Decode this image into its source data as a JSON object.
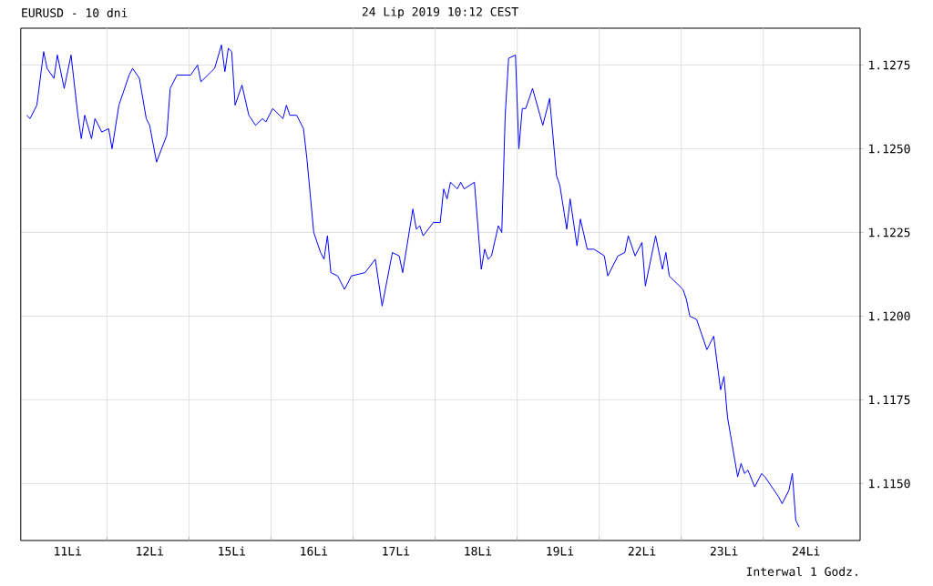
{
  "chart_data": {
    "type": "line",
    "title": "EURUSD - 10 dni",
    "subtitle": "24 Lip 2019 10:12 CEST",
    "annotations": [
      "Interwal 1 Godz."
    ],
    "categories": [
      null,
      null,
      null,
      null,
      null,
      null,
      null,
      null,
      null,
      null,
      null,
      null,
      "11Li",
      null,
      null,
      null,
      null,
      null,
      null,
      null,
      null,
      null,
      null,
      null,
      null,
      null,
      null,
      null,
      null,
      null,
      null,
      null,
      null,
      null,
      null,
      null,
      "12Li",
      null,
      null,
      null,
      null,
      null,
      null,
      null,
      null,
      null,
      null,
      null,
      null,
      null,
      null,
      null,
      null,
      null,
      null,
      null,
      null,
      null,
      null,
      null,
      "15Li",
      null,
      null,
      null,
      null,
      null,
      null,
      null,
      null,
      null,
      null,
      null,
      null,
      null,
      null,
      null,
      null,
      null,
      null,
      null,
      null,
      null,
      null,
      null,
      "16Li",
      null,
      null,
      null,
      null,
      null,
      null,
      null,
      null,
      null,
      null,
      null,
      null,
      null,
      null,
      null,
      null,
      null,
      null,
      null,
      null,
      null,
      null,
      null,
      "17Li",
      null,
      null,
      null,
      null,
      null,
      null,
      null,
      null,
      null,
      null,
      null,
      null,
      null,
      null,
      null,
      null,
      null,
      null,
      null,
      null,
      null,
      null,
      null,
      "18Li",
      null,
      null,
      null,
      null,
      null,
      null,
      null,
      null,
      null,
      null,
      null,
      null,
      null,
      null,
      null,
      null,
      null,
      null,
      null,
      null,
      null,
      null,
      null,
      "19Li",
      null,
      null,
      null,
      null,
      null,
      null,
      null,
      null,
      null,
      null,
      null,
      null,
      null,
      null,
      null,
      null,
      null,
      null,
      null,
      null,
      null,
      null,
      null,
      "22Li",
      null,
      null,
      null,
      null,
      null,
      null,
      null,
      null,
      null,
      null,
      null,
      null,
      null,
      null,
      null,
      null,
      null,
      null,
      null,
      null,
      null,
      null,
      null,
      "23Li",
      null,
      null,
      null,
      null,
      null,
      null,
      null,
      null,
      null,
      null,
      null,
      null,
      null,
      null,
      null,
      null,
      null,
      null,
      null,
      null,
      null,
      null,
      null,
      "24Li",
      null,
      null,
      null,
      null,
      null,
      null,
      null,
      null,
      null,
      null,
      null
    ],
    "ylim": [
      1.1133,
      1.1286
    ],
    "yticks": [
      {
        "value": 1.115,
        "label": "1.1150"
      },
      {
        "value": 1.1175,
        "label": "1.1175"
      },
      {
        "value": 1.12,
        "label": "1.1200"
      },
      {
        "value": 1.1225,
        "label": "1.1225"
      },
      {
        "value": 1.125,
        "label": "1.1250"
      },
      {
        "value": 1.1275,
        "label": "1.1275"
      }
    ],
    "grid": true,
    "series": [
      {
        "color": "#0000ff",
        "values": [
          1.126,
          1.1259,
          null,
          1.1263,
          null,
          1.1279,
          1.1274,
          null,
          1.1271,
          1.1278,
          null,
          1.1268,
          null,
          1.1278,
          null,
          1.126,
          1.1253,
          1.126,
          null,
          1.1253,
          1.1259,
          null,
          1.1255,
          null,
          1.1256,
          1.125,
          null,
          1.1263,
          null,
          null,
          1.1272,
          1.1274,
          null,
          1.1271,
          1.1265,
          1.1259,
          1.1257,
          null,
          1.1246,
          null,
          null,
          1.1254,
          1.1268,
          null,
          1.1272,
          null,
          null,
          null,
          1.1272,
          null,
          1.1275,
          1.127,
          null,
          null,
          1.1273,
          1.1274,
          null,
          1.1281,
          1.1273,
          1.128,
          1.1279,
          1.1263,
          null,
          1.1269,
          null,
          1.126,
          null,
          1.1257,
          null,
          1.1259,
          1.1258,
          null,
          1.1262,
          null,
          null,
          1.1259,
          1.1263,
          1.126,
          null,
          1.126,
          null,
          1.1256,
          1.1247,
          null,
          1.1225,
          null,
          1.1219,
          1.1217,
          1.1224,
          1.1213,
          null,
          1.1212,
          null,
          1.1208,
          null,
          1.1212,
          null,
          null,
          null,
          1.1213,
          null,
          null,
          1.1217,
          null,
          1.1203,
          null,
          null,
          1.1219,
          null,
          1.1218,
          1.1213,
          null,
          null,
          1.1232,
          1.1226,
          1.1227,
          1.1224,
          null,
          null,
          1.1228,
          null,
          1.1228,
          1.1238,
          1.1235,
          1.124,
          null,
          1.1238,
          1.124,
          1.1238,
          null,
          null,
          1.124,
          1.1227,
          1.1214,
          1.122,
          1.1217,
          1.1218,
          null,
          1.1227,
          1.1225,
          1.126,
          1.1277,
          null,
          1.1278,
          1.125,
          1.1262,
          1.1262,
          null,
          1.1268,
          null,
          null,
          1.1257,
          null,
          1.1265,
          null,
          1.1242,
          1.1239,
          null,
          1.1226,
          1.1235,
          null,
          1.1221,
          1.1229,
          null,
          1.122,
          null,
          1.122,
          null,
          null,
          1.1218,
          1.1212,
          null,
          null,
          1.1218,
          null,
          1.1219,
          1.1224,
          null,
          1.1218,
          null,
          1.1222,
          1.1209,
          null,
          null,
          1.1224,
          null,
          1.1214,
          1.1219,
          1.1212,
          null,
          null,
          1.1209,
          1.1208,
          1.1205,
          1.12,
          null,
          1.1199,
          null,
          null,
          1.119,
          null,
          1.1194,
          null,
          1.1178,
          1.1182,
          1.117,
          null,
          null,
          1.1152,
          1.1156,
          1.1153,
          1.1154,
          null,
          1.1149,
          null,
          1.1153,
          1.1152,
          null,
          null,
          null,
          1.1146,
          1.1144,
          null,
          1.1148,
          1.1153,
          1.1139,
          1.1137,
          null,
          null,
          null,
          null,
          null,
          null,
          null,
          null,
          null,
          null,
          null,
          null,
          null
        ]
      }
    ]
  }
}
